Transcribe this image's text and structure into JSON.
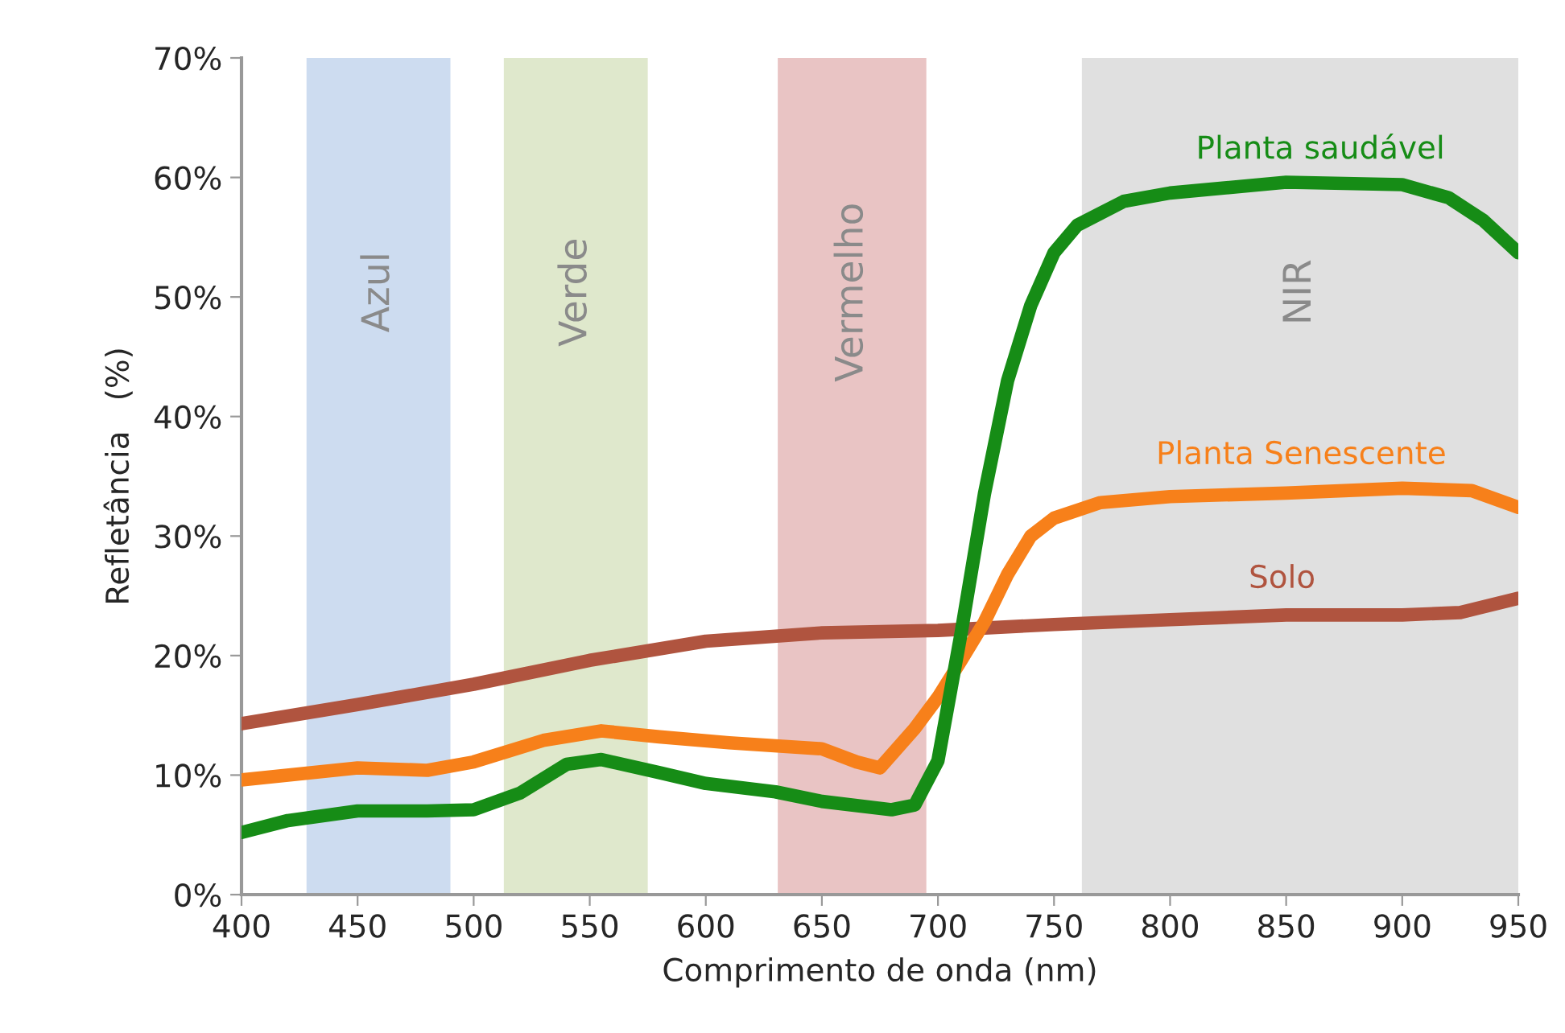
{
  "chart_data": {
    "type": "line",
    "xlabel": "Comprimento de onda (nm)",
    "ylabel": "Refletância   (%)",
    "xlim": [
      400,
      950
    ],
    "xticks": [
      400,
      450,
      500,
      550,
      600,
      650,
      700,
      750,
      800,
      850,
      900,
      950
    ],
    "ylim": [
      0,
      70
    ],
    "yticks": [
      {
        "value": 0,
        "label": "0%"
      },
      {
        "value": 10,
        "label": "10%"
      },
      {
        "value": 20,
        "label": "20%"
      },
      {
        "value": 30,
        "label": "30%"
      },
      {
        "value": 40,
        "label": "40%"
      },
      {
        "value": 50,
        "label": "50%"
      },
      {
        "value": 60,
        "label": "60%"
      },
      {
        "value": 70,
        "label": "70%"
      }
    ],
    "grid": false,
    "legend": false,
    "line_style": "solid",
    "marker": "none",
    "bands": [
      {
        "axis": "x",
        "from": 428,
        "to": 490,
        "label": "Azul",
        "color": "#cddcf0"
      },
      {
        "axis": "x",
        "from": 513,
        "to": 575,
        "label": "Verde",
        "color": "#dfe8cc"
      },
      {
        "axis": "x",
        "from": 631,
        "to": 695,
        "label": "Vermelho",
        "color": "#e9c4c4"
      },
      {
        "axis": "x",
        "from": 762,
        "to": 950,
        "label": "NIR",
        "color": "#e0e0e0"
      }
    ],
    "series": [
      {
        "name": "Solo",
        "color": "#b0543f",
        "x": [
          400,
          450,
          500,
          550,
          600,
          650,
          700,
          750,
          800,
          850,
          900,
          925,
          950
        ],
        "values": [
          14.3,
          15.9,
          17.6,
          19.6,
          21.2,
          21.9,
          22.1,
          22.6,
          23.0,
          23.4,
          23.4,
          23.6,
          24.8
        ]
      },
      {
        "name": "Planta Senescente",
        "color": "#f7801a",
        "x": [
          400,
          450,
          480,
          500,
          530,
          555,
          580,
          610,
          650,
          665,
          675,
          690,
          700,
          710,
          720,
          730,
          740,
          750,
          770,
          800,
          850,
          900,
          930,
          950
        ],
        "values": [
          9.6,
          10.6,
          10.4,
          11.1,
          12.9,
          13.7,
          13.2,
          12.7,
          12.2,
          11.1,
          10.6,
          13.9,
          16.5,
          19.6,
          22.8,
          26.8,
          30.0,
          31.5,
          32.8,
          33.3,
          33.6,
          34.0,
          33.8,
          32.4
        ]
      },
      {
        "name": "Planta saudável",
        "color": "#168c16",
        "x": [
          400,
          420,
          450,
          480,
          500,
          520,
          540,
          555,
          580,
          600,
          630,
          650,
          680,
          690,
          700,
          710,
          720,
          730,
          740,
          750,
          760,
          780,
          800,
          850,
          900,
          920,
          935,
          950
        ],
        "values": [
          5.2,
          6.2,
          7.0,
          7.0,
          7.1,
          8.5,
          10.9,
          11.3,
          10.2,
          9.3,
          8.6,
          7.8,
          7.1,
          7.5,
          11.2,
          21.9,
          33.5,
          43.0,
          49.3,
          53.7,
          56.0,
          58.0,
          58.7,
          59.6,
          59.4,
          58.3,
          56.4,
          53.7
        ]
      }
    ]
  }
}
